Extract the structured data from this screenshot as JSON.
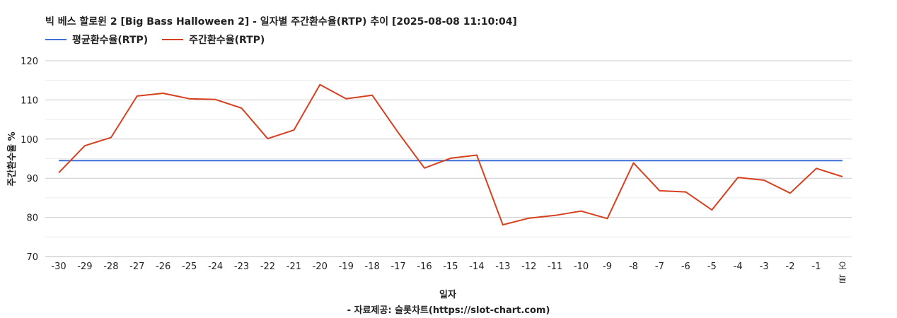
{
  "chart_data": {
    "type": "line",
    "title": "빅 베스 할로윈 2 [Big Bass Halloween 2] - 일자별 주간환수율(RTP) 추이 [2025-08-08 11:10:04]",
    "xlabel": "일자",
    "ylabel": "주간환수율 %",
    "caption": "- 자료제공: 슬롯차트(https://slot-chart.com)",
    "ylim": [
      70,
      120
    ],
    "yticks": [
      "70",
      "80",
      "90",
      "100",
      "110",
      "120"
    ],
    "grid": true,
    "legend_position": "top-left",
    "categories": [
      "-30",
      "-29",
      "-28",
      "-27",
      "-26",
      "-25",
      "-24",
      "-23",
      "-22",
      "-21",
      "-20",
      "-19",
      "-18",
      "-17",
      "-16",
      "-15",
      "-14",
      "-13",
      "-12",
      "-11",
      "-10",
      "-9",
      "-8",
      "-7",
      "-6",
      "-5",
      "-4",
      "-3",
      "-2",
      "-1",
      "오늘"
    ],
    "series": [
      {
        "name": "평균환수율(RTP)",
        "color": "#3f6fd8",
        "values": [
          94.5,
          94.5,
          94.5,
          94.5,
          94.5,
          94.5,
          94.5,
          94.5,
          94.5,
          94.5,
          94.5,
          94.5,
          94.5,
          94.5,
          94.5,
          94.5,
          94.5,
          94.5,
          94.5,
          94.5,
          94.5,
          94.5,
          94.5,
          94.5,
          94.5,
          94.5,
          94.5,
          94.5,
          94.5,
          94.5,
          94.5
        ]
      },
      {
        "name": "주간환수율(RTP)",
        "color": "#d7401f",
        "values": [
          91.4,
          98.3,
          100.4,
          111.0,
          111.7,
          110.3,
          110.1,
          107.9,
          100.1,
          102.3,
          113.9,
          110.3,
          111.2,
          101.6,
          92.6,
          95.1,
          95.9,
          78.1,
          79.8,
          80.5,
          81.6,
          79.7,
          93.9,
          86.8,
          86.5,
          81.9,
          90.2,
          89.5,
          86.2,
          92.5,
          90.4
        ]
      }
    ]
  }
}
